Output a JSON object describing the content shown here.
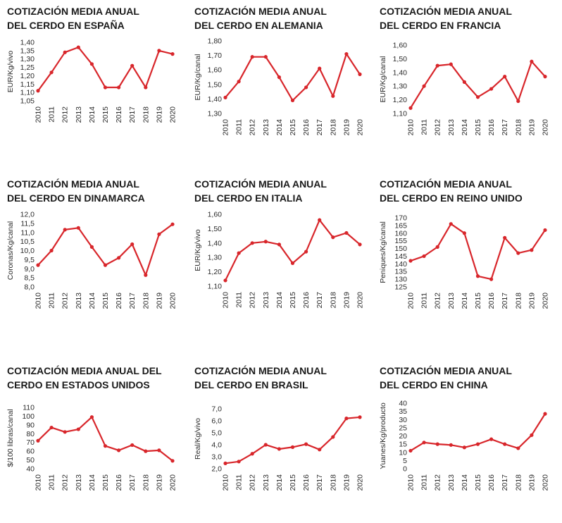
{
  "colors": {
    "line": "#d8262b",
    "text": "#1a1a1a"
  },
  "chart_data": [
    {
      "type": "line",
      "title_lines": [
        "COTIZACIÓN MEDIA ANUAL",
        "DEL CERDO EN ESPAÑA"
      ],
      "ylabel": "EUR/Kg/vivo",
      "categories": [
        "2010",
        "2011",
        "2012",
        "2013",
        "2014",
        "2015",
        "2016",
        "2017",
        "2018",
        "2019",
        "2020"
      ],
      "values": [
        1.11,
        1.22,
        1.34,
        1.37,
        1.27,
        1.13,
        1.13,
        1.26,
        1.13,
        1.35,
        1.33
      ],
      "ylim": [
        1.05,
        1.4
      ],
      "yticks": [
        "1,05",
        "1,10",
        "1,15",
        "1,20",
        "1,25",
        "1,30",
        "1,35",
        "1,40"
      ],
      "yticks_values": [
        1.05,
        1.1,
        1.15,
        1.2,
        1.25,
        1.3,
        1.35,
        1.4
      ]
    },
    {
      "type": "line",
      "title_lines": [
        "COTIZACIÓN MEDIA ANUAL",
        "DEL CERDO EN ALEMANIA"
      ],
      "ylabel": "EUR/Kg/canal",
      "categories": [
        "2010",
        "2011",
        "2012",
        "2013",
        "2014",
        "2015",
        "2016",
        "2017",
        "2018",
        "2019",
        "2020"
      ],
      "values": [
        1.41,
        1.52,
        1.69,
        1.69,
        1.55,
        1.39,
        1.48,
        1.61,
        1.42,
        1.71,
        1.57
      ],
      "ylim": [
        1.3,
        1.8
      ],
      "yticks": [
        "1,30",
        "1,40",
        "1,50",
        "1,60",
        "1,70",
        "1,80"
      ],
      "yticks_values": [
        1.3,
        1.4,
        1.5,
        1.6,
        1.7,
        1.8
      ]
    },
    {
      "type": "line",
      "title_lines": [
        "COTIZACIÓN MEDIA ANUAL",
        "DEL CERDO EN FRANCIA"
      ],
      "ylabel": "EUR/Kg/canal",
      "categories": [
        "2010",
        "2011",
        "2012",
        "2013",
        "2014",
        "2015",
        "2016",
        "2017",
        "2018",
        "2019",
        "2020"
      ],
      "values": [
        1.14,
        1.3,
        1.45,
        1.46,
        1.33,
        1.22,
        1.28,
        1.37,
        1.19,
        1.48,
        1.37
      ],
      "ylim": [
        1.1,
        1.6
      ],
      "yticks": [
        "1,10",
        "1,20",
        "1,30",
        "1,40",
        "1,50",
        "1,60"
      ],
      "yticks_values": [
        1.1,
        1.2,
        1.3,
        1.4,
        1.5,
        1.6
      ]
    },
    {
      "type": "line",
      "title_lines": [
        "COTIZACIÓN MEDIA ANUAL",
        "DEL CERDO EN DINAMARCA"
      ],
      "ylabel": "Coronas/Kg/canal",
      "categories": [
        "2010",
        "2011",
        "2012",
        "2013",
        "2014",
        "2015",
        "2016",
        "2017",
        "2018",
        "2019",
        "2020"
      ],
      "values": [
        9.2,
        10.0,
        11.15,
        11.25,
        10.2,
        9.2,
        9.6,
        10.35,
        8.65,
        10.9,
        11.45
      ],
      "ylim": [
        8.0,
        12.0
      ],
      "yticks": [
        "8,0",
        "8,5",
        "9,0",
        "9,5",
        "10,0",
        "10,5",
        "11,0",
        "11,5",
        "12,0"
      ],
      "yticks_values": [
        8.0,
        8.5,
        9.0,
        9.5,
        10.0,
        10.5,
        11.0,
        11.5,
        12.0
      ]
    },
    {
      "type": "line",
      "title_lines": [
        "COTIZACIÓN MEDIA ANUAL",
        "DEL CERDO EN ITALIA"
      ],
      "ylabel": "EUR/Kg/vivo",
      "categories": [
        "2010",
        "2011",
        "2012",
        "2013",
        "2014",
        "2015",
        "2016",
        "2017",
        "2018",
        "2019",
        "2020"
      ],
      "values": [
        1.14,
        1.33,
        1.4,
        1.41,
        1.39,
        1.26,
        1.34,
        1.56,
        1.44,
        1.47,
        1.39
      ],
      "ylim": [
        1.1,
        1.6
      ],
      "yticks": [
        "1,10",
        "1,20",
        "1,30",
        "1,40",
        "1,50",
        "1,60"
      ],
      "yticks_values": [
        1.1,
        1.2,
        1.3,
        1.4,
        1.5,
        1.6
      ]
    },
    {
      "type": "line",
      "title_lines": [
        "COTIZACIÓN MEDIA ANUAL",
        "DEL CERDO EN REINO UNIDO"
      ],
      "ylabel": "Peniques/Kg/canal",
      "categories": [
        "2010",
        "2011",
        "2012",
        "2013",
        "2014",
        "2015",
        "2016",
        "2017",
        "2018",
        "2019",
        "2020"
      ],
      "values": [
        142,
        145,
        151,
        166,
        160,
        132,
        130,
        157,
        147,
        149,
        162
      ],
      "ylim": [
        125,
        170
      ],
      "yticks": [
        "125",
        "130",
        "135",
        "140",
        "145",
        "150",
        "155",
        "160",
        "165",
        "170"
      ],
      "yticks_values": [
        125,
        130,
        135,
        140,
        145,
        150,
        155,
        160,
        165,
        170
      ]
    },
    {
      "type": "line",
      "title_lines": [
        "COTIZACIÓN MEDIA ANUAL DEL",
        "CERDO EN ESTADOS UNIDOS"
      ],
      "ylabel": "$/100 libras/canal",
      "categories": [
        "2010",
        "2011",
        "2012",
        "2013",
        "2014",
        "2015",
        "2016",
        "2017",
        "2018",
        "2019",
        "2020"
      ],
      "values": [
        72,
        87,
        82,
        85,
        99,
        66,
        61,
        67,
        60,
        61,
        49
      ],
      "ylim": [
        40,
        110
      ],
      "yticks": [
        "40",
        "50",
        "60",
        "70",
        "80",
        "90",
        "100",
        "110"
      ],
      "yticks_values": [
        40,
        50,
        60,
        70,
        80,
        90,
        100,
        110
      ]
    },
    {
      "type": "line",
      "title_lines": [
        "COTIZACIÓN MEDIA ANUAL",
        "DEL CERDO EN BRASIL"
      ],
      "ylabel": "Real/Kg/vivo",
      "categories": [
        "2010",
        "2011",
        "2012",
        "2013",
        "2014",
        "2015",
        "2016",
        "2017",
        "2018",
        "2019",
        "2020"
      ],
      "values": [
        2.45,
        2.6,
        3.25,
        4.0,
        3.65,
        3.8,
        4.05,
        3.6,
        4.65,
        6.2,
        6.3
      ],
      "ylim": [
        2.0,
        7.0
      ],
      "yticks": [
        "2,0",
        "3,0",
        "4,0",
        "5,0",
        "6,0",
        "7,0"
      ],
      "yticks_values": [
        2.0,
        3.0,
        4.0,
        5.0,
        6.0,
        7.0
      ]
    },
    {
      "type": "line",
      "title_lines": [
        "COTIZACIÓN MEDIA ANUAL",
        "DEL CERDO EN CHINA"
      ],
      "ylabel": "Yuanes/Kg/producto",
      "categories": [
        "2010",
        "2011",
        "2012",
        "2013",
        "2014",
        "2015",
        "2016",
        "2017",
        "2018",
        "2019",
        "2020"
      ],
      "values": [
        11,
        16,
        15,
        14.5,
        13,
        15,
        18,
        15,
        12.5,
        20.5,
        33.5
      ],
      "ylim": [
        0,
        40
      ],
      "yticks": [
        "0",
        "5",
        "10",
        "15",
        "20",
        "25",
        "30",
        "35",
        "40"
      ],
      "yticks_values": [
        0,
        5,
        10,
        15,
        20,
        25,
        30,
        35,
        40
      ]
    }
  ]
}
